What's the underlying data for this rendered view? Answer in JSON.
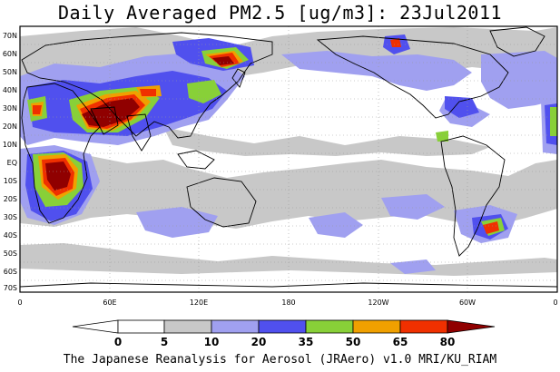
{
  "title": "Daily Averaged PM2.5 [ug/m3]: 23Jul2011",
  "footer": "The Japanese Reanalysis for Aerosol (JRAero) v1.0 MRI/KU_RIAM",
  "lat_ticks": [
    "70N",
    "60N",
    "50N",
    "40N",
    "30N",
    "20N",
    "10N",
    "EQ",
    "10S",
    "20S",
    "30S",
    "40S",
    "50S",
    "60S",
    "70S"
  ],
  "lon_ticks": [
    "0",
    "60E",
    "120E",
    "180",
    "120W",
    "60W",
    "0"
  ],
  "colorbar": {
    "ticks": [
      "0",
      "5",
      "10",
      "20",
      "35",
      "50",
      "65",
      "80"
    ],
    "colors": [
      "#ffffff",
      "#c8c8c8",
      "#a0a0f0",
      "#5050ee",
      "#88d038",
      "#f0a000",
      "#f03000",
      "#900000"
    ]
  }
}
